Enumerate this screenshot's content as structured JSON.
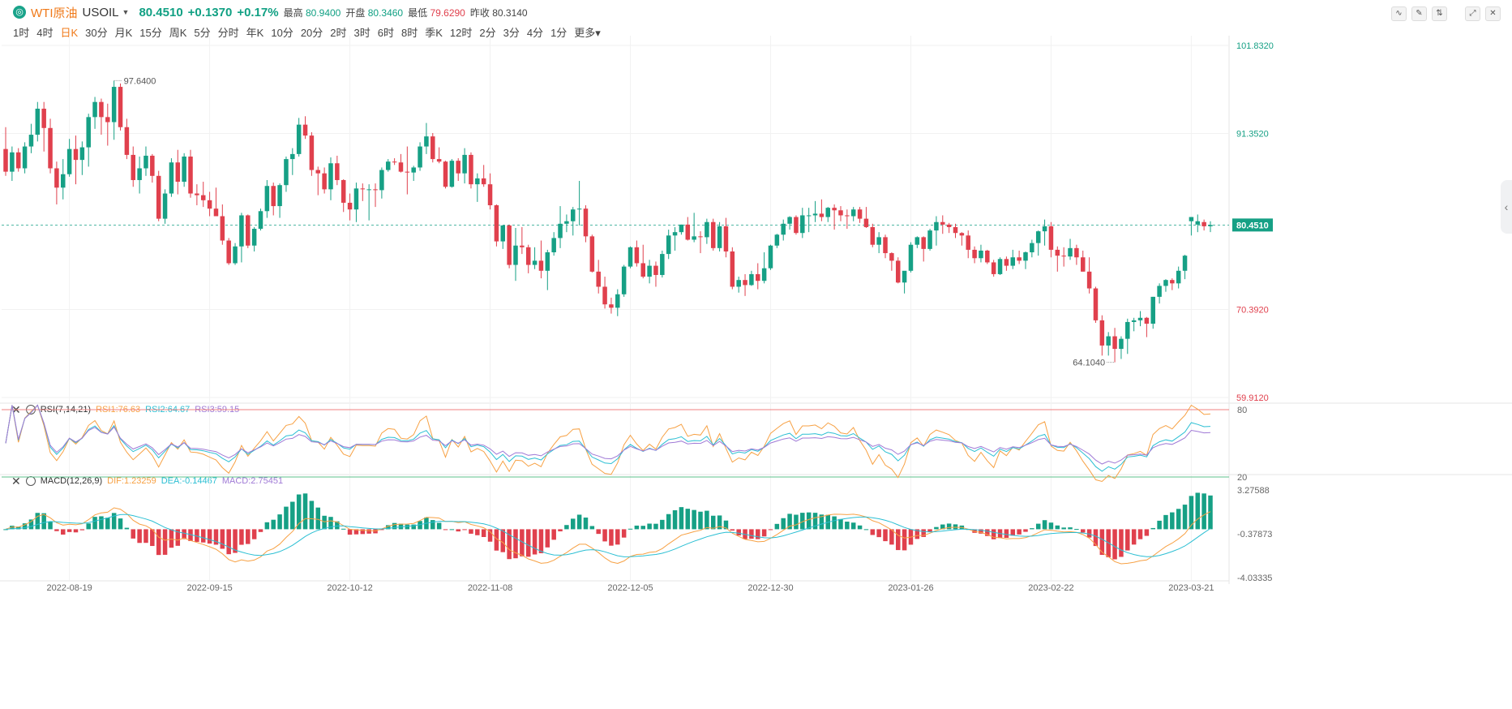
{
  "header": {
    "logo_icon": "circle-logo-icon",
    "name": "WTI原油",
    "symbol": "USOIL",
    "price": "80.4510",
    "change": "+0.1370",
    "change_pct": "+0.17%",
    "high_label": "最高",
    "high": "80.9400",
    "open_label": "开盘",
    "open": "80.3460",
    "low_label": "最低",
    "low": "79.6290",
    "prev_label": "昨收",
    "prev": "80.3140",
    "tools": [
      "line-chart-icon",
      "draw-icon",
      "compare-icon",
      "fullscreen-icon",
      "close-icon"
    ]
  },
  "periods": [
    "1时",
    "4时",
    "日K",
    "30分",
    "月K",
    "15分",
    "周K",
    "5分",
    "分时",
    "年K",
    "10分",
    "20分",
    "2时",
    "3时",
    "6时",
    "8时",
    "季K",
    "12时",
    "2分",
    "3分",
    "4分",
    "1分",
    "更多"
  ],
  "active_period": "日K",
  "colors": {
    "up": "#16a085",
    "down": "#e0404d",
    "orange": "#f7a144",
    "cyan": "#2bbfd3",
    "purple": "#a07ad6"
  },
  "chart_data": {
    "type": "candlestick",
    "ylim": [
      59.912,
      101.832
    ],
    "price_ticks": [
      "101.8320",
      "91.3520",
      "80.4510",
      "70.3920",
      "59.9120"
    ],
    "current_price": 80.451,
    "max_label": "97.6400",
    "min_label": "64.1040",
    "x_ticks": [
      "2022-08-19",
      "2022-09-15",
      "2022-10-12",
      "2022-11-08",
      "2022-12-05",
      "2022-12-30",
      "2023-01-26",
      "2023-02-22",
      "2023-03-21"
    ],
    "candles": [
      [
        89.5,
        92.1,
        86.3,
        86.8
      ],
      [
        86.8,
        89.8,
        85.7,
        89.1
      ],
      [
        89.1,
        89.6,
        86.8,
        87.2
      ],
      [
        87.2,
        90.3,
        86.6,
        89.8
      ],
      [
        89.8,
        92.5,
        89.0,
        91.2
      ],
      [
        91.2,
        95.1,
        90.4,
        94.3
      ],
      [
        94.3,
        95.1,
        89.2,
        92.0
      ],
      [
        92.0,
        93.1,
        86.6,
        87.2
      ],
      [
        87.2,
        88.0,
        82.9,
        84.9
      ],
      [
        84.9,
        88.3,
        83.5,
        86.5
      ],
      [
        86.5,
        90.7,
        86.2,
        89.5
      ],
      [
        89.5,
        91.1,
        85.3,
        88.2
      ],
      [
        88.2,
        90.4,
        86.4,
        89.7
      ],
      [
        89.7,
        93.7,
        87.4,
        93.3
      ],
      [
        93.3,
        95.7,
        91.9,
        95.1
      ],
      [
        95.1,
        95.5,
        91.2,
        93.3
      ],
      [
        93.3,
        94.9,
        89.9,
        92.7
      ],
      [
        92.7,
        97.64,
        90.6,
        96.9
      ],
      [
        96.9,
        97.3,
        91.7,
        92.1
      ],
      [
        92.1,
        93.1,
        88.3,
        88.8
      ],
      [
        88.8,
        89.8,
        85.0,
        85.8
      ],
      [
        85.8,
        88.6,
        84.2,
        87.2
      ],
      [
        87.2,
        89.8,
        86.3,
        88.7
      ],
      [
        88.7,
        88.9,
        85.5,
        86.3
      ],
      [
        86.3,
        86.9,
        80.9,
        81.2
      ],
      [
        81.2,
        84.7,
        80.6,
        84.2
      ],
      [
        84.2,
        88.4,
        83.8,
        87.9
      ],
      [
        87.9,
        89.4,
        84.1,
        85.6
      ],
      [
        85.6,
        89.0,
        85.0,
        88.6
      ],
      [
        88.6,
        89.4,
        83.7,
        84.2
      ],
      [
        84.2,
        85.3,
        82.8,
        84.0
      ],
      [
        84.0,
        85.6,
        82.6,
        83.4
      ],
      [
        83.4,
        84.4,
        81.5,
        82.4
      ],
      [
        82.4,
        84.9,
        81.5,
        81.5
      ],
      [
        81.5,
        82.9,
        78.1,
        78.6
      ],
      [
        78.6,
        78.9,
        75.7,
        75.9
      ],
      [
        75.9,
        78.3,
        75.7,
        77.9
      ],
      [
        77.9,
        81.9,
        76.0,
        81.6
      ],
      [
        81.6,
        81.7,
        77.7,
        78.0
      ],
      [
        78.0,
        80.2,
        77.3,
        80.0
      ],
      [
        80.0,
        82.4,
        79.8,
        82.1
      ],
      [
        82.1,
        85.8,
        81.3,
        85.1
      ],
      [
        85.1,
        85.5,
        81.6,
        82.7
      ],
      [
        82.7,
        85.4,
        81.3,
        85.2
      ],
      [
        85.2,
        88.6,
        84.4,
        88.3
      ],
      [
        88.3,
        89.6,
        86.4,
        88.9
      ],
      [
        88.9,
        93.2,
        88.6,
        92.4
      ],
      [
        92.4,
        93.4,
        90.7,
        91.1
      ],
      [
        91.1,
        91.5,
        86.3,
        87.0
      ],
      [
        87.0,
        87.4,
        84.0,
        86.6
      ],
      [
        86.6,
        87.3,
        84.2,
        84.7
      ],
      [
        84.7,
        88.5,
        83.4,
        87.8
      ],
      [
        87.8,
        88.7,
        85.2,
        85.8
      ],
      [
        85.8,
        85.9,
        82.0,
        83.1
      ],
      [
        83.1,
        84.2,
        81.0,
        82.3
      ],
      [
        82.3,
        85.5,
        80.8,
        84.8
      ],
      [
        84.8,
        85.4,
        83.3,
        84.7
      ],
      [
        84.7,
        85.3,
        81.0,
        84.7
      ],
      [
        84.7,
        85.4,
        82.6,
        84.6
      ],
      [
        84.6,
        87.3,
        83.6,
        87.0
      ],
      [
        87.0,
        88.3,
        86.8,
        88.0
      ],
      [
        88.0,
        88.4,
        87.6,
        87.9
      ],
      [
        87.9,
        88.9,
        86.7,
        86.8
      ],
      [
        86.8,
        89.8,
        84.1,
        86.7
      ],
      [
        86.7,
        87.5,
        85.7,
        87.3
      ],
      [
        87.3,
        90.3,
        86.9,
        89.8
      ],
      [
        89.8,
        92.6,
        88.9,
        91.0
      ],
      [
        91.0,
        91.4,
        87.9,
        88.3
      ],
      [
        88.3,
        89.7,
        87.8,
        88.0
      ],
      [
        88.0,
        88.1,
        84.8,
        85.0
      ],
      [
        85.0,
        88.3,
        84.9,
        88.1
      ],
      [
        88.1,
        88.4,
        85.7,
        86.6
      ],
      [
        86.6,
        89.6,
        85.4,
        88.8
      ],
      [
        88.8,
        89.1,
        84.8,
        85.3
      ],
      [
        85.3,
        86.6,
        83.2,
        86.0
      ],
      [
        86.0,
        87.6,
        85.0,
        85.3
      ],
      [
        85.3,
        86.6,
        82.3,
        82.8
      ],
      [
        82.8,
        82.9,
        77.9,
        78.5
      ],
      [
        78.5,
        80.4,
        77.6,
        80.4
      ],
      [
        80.4,
        80.5,
        75.3,
        75.7
      ],
      [
        75.7,
        80.1,
        73.8,
        78.0
      ],
      [
        78.0,
        80.2,
        77.0,
        77.8
      ],
      [
        77.8,
        78.1,
        74.7,
        75.7
      ],
      [
        75.7,
        77.8,
        75.2,
        76.2
      ],
      [
        76.2,
        78.6,
        74.1,
        75.0
      ],
      [
        75.0,
        77.5,
        72.7,
        77.2
      ],
      [
        77.2,
        79.6,
        76.8,
        78.9
      ],
      [
        78.9,
        82.7,
        77.7,
        80.6
      ],
      [
        80.6,
        81.7,
        79.6,
        80.9
      ],
      [
        80.9,
        82.6,
        79.2,
        82.3
      ],
      [
        82.3,
        85.7,
        80.4,
        82.4
      ],
      [
        82.4,
        82.8,
        78.4,
        79.1
      ],
      [
        79.1,
        79.3,
        74.8,
        74.9
      ],
      [
        74.9,
        76.3,
        72.3,
        73.1
      ],
      [
        73.1,
        74.3,
        70.5,
        71.0
      ],
      [
        71.0,
        71.8,
        69.9,
        70.6
      ],
      [
        70.6,
        72.8,
        69.6,
        72.2
      ],
      [
        72.2,
        75.7,
        71.9,
        75.5
      ],
      [
        75.5,
        77.9,
        75.3,
        77.8
      ],
      [
        77.8,
        78.6,
        75.5,
        75.9
      ],
      [
        75.9,
        78.1,
        74.1,
        74.3
      ],
      [
        74.3,
        76.3,
        73.5,
        75.6
      ],
      [
        75.6,
        76.1,
        73.1,
        74.5
      ],
      [
        74.5,
        77.4,
        74.2,
        77.0
      ],
      [
        77.0,
        79.9,
        76.4,
        79.2
      ],
      [
        79.2,
        80.2,
        77.4,
        79.6
      ],
      [
        79.6,
        80.5,
        79.3,
        80.5
      ],
      [
        80.5,
        81.4,
        78.6,
        78.7
      ],
      [
        78.7,
        81.9,
        78.4,
        79.1
      ],
      [
        79.1,
        79.7,
        77.1,
        79.0
      ],
      [
        79.0,
        81.2,
        78.2,
        80.8
      ],
      [
        80.8,
        81.2,
        77.4,
        77.7
      ],
      [
        77.7,
        80.8,
        77.3,
        80.3
      ],
      [
        80.3,
        81.3,
        76.6,
        77.3
      ],
      [
        77.3,
        77.8,
        72.8,
        73.1
      ],
      [
        73.1,
        74.3,
        72.4,
        73.9
      ],
      [
        73.9,
        74.6,
        72.0,
        73.3
      ],
      [
        73.3,
        75.0,
        73.2,
        74.6
      ],
      [
        74.6,
        75.9,
        72.8,
        73.8
      ],
      [
        73.8,
        77.2,
        73.5,
        75.3
      ],
      [
        75.3,
        78.1,
        75.1,
        78.0
      ],
      [
        78.0,
        79.4,
        77.7,
        79.3
      ],
      [
        79.3,
        81.1,
        78.6,
        80.6
      ],
      [
        80.6,
        81.5,
        79.9,
        81.4
      ],
      [
        81.4,
        81.6,
        79.3,
        79.5
      ],
      [
        79.5,
        82.5,
        78.9,
        81.6
      ],
      [
        81.6,
        82.5,
        79.6,
        81.6
      ],
      [
        81.6,
        83.3,
        80.8,
        81.8
      ],
      [
        81.8,
        83.5,
        80.9,
        81.4
      ],
      [
        81.4,
        82.6,
        80.8,
        82.5
      ],
      [
        82.5,
        82.9,
        79.9,
        82.2
      ],
      [
        82.2,
        82.7,
        80.9,
        81.6
      ],
      [
        81.6,
        82.3,
        80.0,
        81.5
      ],
      [
        81.5,
        82.6,
        80.9,
        82.3
      ],
      [
        82.3,
        82.6,
        80.7,
        81.2
      ],
      [
        81.2,
        82.6,
        80.1,
        80.2
      ],
      [
        80.2,
        80.6,
        77.8,
        78.1
      ],
      [
        78.1,
        79.6,
        77.1,
        79.0
      ],
      [
        79.0,
        79.3,
        76.5,
        77.1
      ],
      [
        77.1,
        77.2,
        75.0,
        76.2
      ],
      [
        76.2,
        76.6,
        73.5,
        73.6
      ],
      [
        73.6,
        74.7,
        72.3,
        75.0
      ],
      [
        75.0,
        78.4,
        74.8,
        78.1
      ],
      [
        78.1,
        79.1,
        77.7,
        79.0
      ],
      [
        79.0,
        79.1,
        76.1,
        77.6
      ],
      [
        77.6,
        80.0,
        77.4,
        79.8
      ],
      [
        79.8,
        81.5,
        78.0,
        80.8
      ],
      [
        80.8,
        81.6,
        79.4,
        80.5
      ],
      [
        80.5,
        80.7,
        79.5,
        80.2
      ],
      [
        80.2,
        80.6,
        78.9,
        79.5
      ],
      [
        79.5,
        79.6,
        78.0,
        79.2
      ],
      [
        79.2,
        79.8,
        76.5,
        77.5
      ],
      [
        77.5,
        77.9,
        75.9,
        76.5
      ],
      [
        76.5,
        78.1,
        76.0,
        77.4
      ],
      [
        77.4,
        77.5,
        75.8,
        76.0
      ],
      [
        76.0,
        76.3,
        74.3,
        74.6
      ],
      [
        74.6,
        76.6,
        74.5,
        76.4
      ],
      [
        76.4,
        76.7,
        75.0,
        75.6
      ],
      [
        75.6,
        77.5,
        75.2,
        76.6
      ],
      [
        76.6,
        77.4,
        75.8,
        76.2
      ],
      [
        76.2,
        77.3,
        75.2,
        77.2
      ],
      [
        77.2,
        78.7,
        76.6,
        78.3
      ],
      [
        78.3,
        79.8,
        76.8,
        79.7
      ],
      [
        79.7,
        81.1,
        78.0,
        80.3
      ],
      [
        80.3,
        80.8,
        76.6,
        77.5
      ],
      [
        77.5,
        77.9,
        74.9,
        76.8
      ],
      [
        76.8,
        77.8,
        75.5,
        76.7
      ],
      [
        76.7,
        78.8,
        76.3,
        77.7
      ],
      [
        77.7,
        78.1,
        75.7,
        76.6
      ],
      [
        76.6,
        77.4,
        74.9,
        74.9
      ],
      [
        74.9,
        76.6,
        72.3,
        72.9
      ],
      [
        72.9,
        73.1,
        68.8,
        69.1
      ],
      [
        69.1,
        69.7,
        64.9,
        66.1
      ],
      [
        66.1,
        67.7,
        64.9,
        67.2
      ],
      [
        67.2,
        68.2,
        64.104,
        65.7
      ],
      [
        65.7,
        67.2,
        64.5,
        66.9
      ],
      [
        66.9,
        69.3,
        65.1,
        68.9
      ],
      [
        68.9,
        69.4,
        67.8,
        69.1
      ],
      [
        69.1,
        70.2,
        68.4,
        69.4
      ],
      [
        69.4,
        69.5,
        67.1,
        68.7
      ],
      [
        68.7,
        71.9,
        68.1,
        71.9
      ],
      [
        71.9,
        73.5,
        71.1,
        73.2
      ],
      [
        73.2,
        74.0,
        72.5,
        73.9
      ],
      [
        73.9,
        74.1,
        72.7,
        73.5
      ],
      [
        73.5,
        75.5,
        72.9,
        75.0
      ],
      [
        75.0,
        76.9,
        74.0,
        76.8
      ],
      [
        80.9,
        81.4,
        79.2,
        81.4
      ],
      [
        80.5,
        81.7,
        79.6,
        80.9
      ],
      [
        80.8,
        81.1,
        79.8,
        80.3
      ],
      [
        80.3,
        80.9,
        79.6,
        80.45
      ]
    ],
    "rsi": {
      "label": "RSI(7,14,21)",
      "series": [
        {
          "name": "RSI1",
          "value": "76.63"
        },
        {
          "name": "RSI2",
          "value": "64.67"
        },
        {
          "name": "RSI3",
          "value": "59.15"
        }
      ],
      "ylim": [
        20,
        80
      ],
      "levels": [
        "80",
        "20"
      ]
    },
    "macd": {
      "label": "MACD(12,26,9)",
      "series": [
        {
          "name": "DIF",
          "value": "1.23259"
        },
        {
          "name": "DEA",
          "value": "-0.14467"
        },
        {
          "name": "MACD",
          "value": "2.75451"
        }
      ],
      "ticks": [
        "3.27588",
        "-0.37873",
        "-4.03335"
      ],
      "ylim": [
        -4.03335,
        3.27588
      ]
    }
  }
}
